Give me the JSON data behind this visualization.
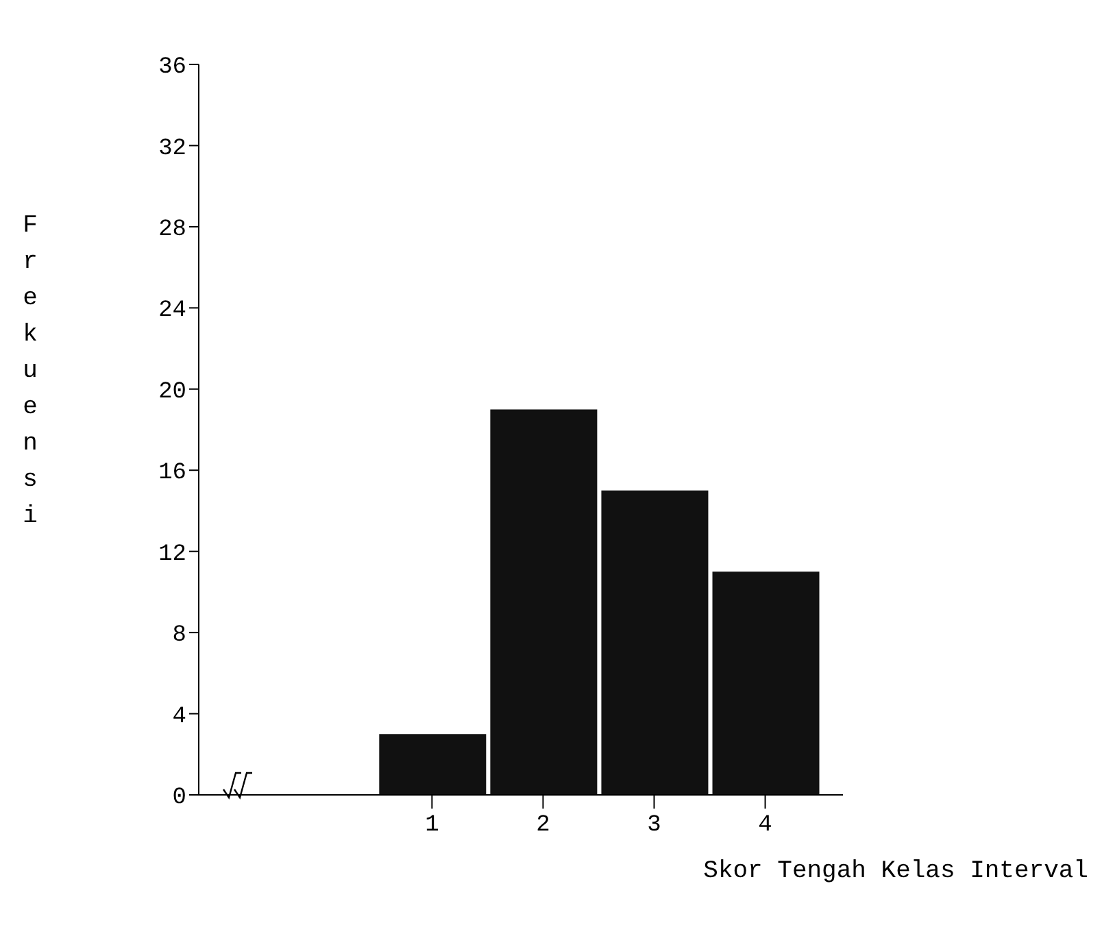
{
  "chart_data": {
    "type": "bar",
    "xlabel": "Skor Tengah Kelas Interval",
    "ylabel": "Frekuensi",
    "x": [
      1,
      2,
      3,
      4
    ],
    "values": [
      3,
      19,
      15,
      11
    ],
    "color": "#111111",
    "xlim": [
      -1.1,
      4.7
    ],
    "xticks": [
      1,
      2,
      3,
      4
    ],
    "ylim": [
      0,
      36
    ],
    "yticks": [
      0,
      4,
      8,
      12,
      16,
      20,
      24,
      28,
      32,
      36
    ],
    "grid": false,
    "legend": false
  }
}
